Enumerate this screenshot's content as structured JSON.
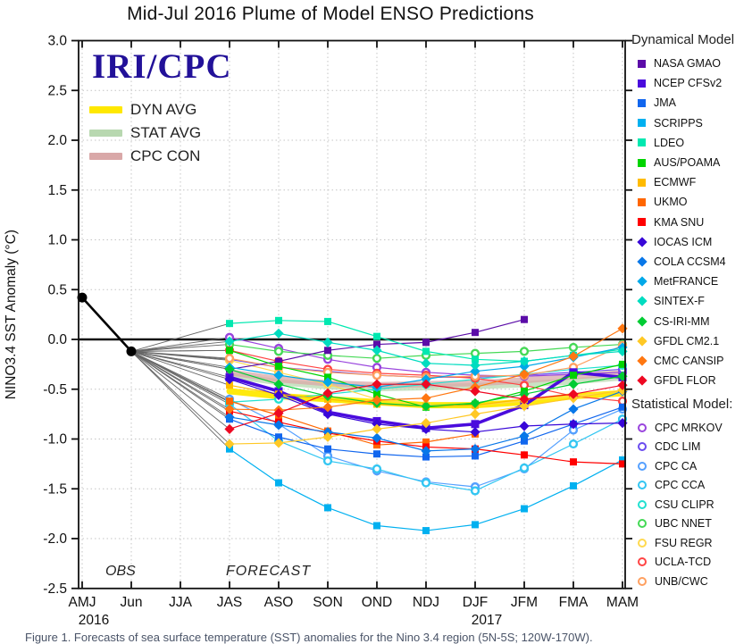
{
  "title": "Mid-Jul 2016 Plume of Model ENSO Predictions",
  "logo": "IRI/CPC",
  "caption": "Figure 1. Forecasts of sea surface temperature (SST) anomalies for the Nino 3.4 region (5N-5S; 120W-170W).",
  "mini_legend": [
    {
      "label": "DYN AVG",
      "color": "#ffe800",
      "opacity": 1
    },
    {
      "label": "STAT AVG",
      "color": "#b8d8b0",
      "opacity": 1
    },
    {
      "label": "CPC CON",
      "color": "#d9a8a8",
      "opacity": 1
    }
  ],
  "legend": {
    "dynamical_header": "Dynamical Model",
    "statistical_header": "Statistical Model:"
  },
  "chart_data": {
    "type": "line",
    "title": "Mid-Jul 2016 Plume of Model ENSO Predictions",
    "xlabel": "",
    "ylabel": "NINO3.4 SST Anomaly (°C)",
    "ylim": [
      -2.5,
      3.0
    ],
    "ytick_step": 0.5,
    "grid": "dotted",
    "legend_position": "right",
    "x_categories": [
      "AMJ",
      "Jun",
      "JJA",
      "JAS",
      "ASO",
      "SON",
      "OND",
      "NDJ",
      "DJF",
      "JFM",
      "FMA",
      "MAM"
    ],
    "year_labels": [
      {
        "text": "2016",
        "cat_index": 0
      },
      {
        "text": "2017",
        "cat_index": 8
      }
    ],
    "annotations": {
      "obs_label": "OBS",
      "forecast_label": "FORECAST"
    },
    "observed": {
      "name": "OBS",
      "color": "#000000",
      "x": [
        "AMJ",
        "Jun"
      ],
      "values": [
        0.42,
        -0.12
      ]
    },
    "forecast_start_category": "JAS",
    "fan_color": "#666666",
    "average_series": [
      {
        "name": "DYN AVG",
        "color": "#ffe800",
        "opacity": 0.95,
        "width": 7,
        "values": [
          -0.52,
          -0.57,
          -0.6,
          -0.63,
          -0.66,
          -0.66,
          -0.63,
          -0.57,
          -0.54
        ]
      },
      {
        "name": "STAT AVG",
        "color": "#b8d8b0",
        "opacity": 0.75,
        "width": 7,
        "values": [
          -0.36,
          -0.43,
          -0.47,
          -0.49,
          -0.48,
          -0.47,
          -0.45,
          -0.42,
          -0.38
        ]
      },
      {
        "name": "CPC CON",
        "color": "#d9a8a8",
        "opacity": 0.75,
        "width": 7,
        "values": [
          -0.33,
          -0.4,
          -0.44,
          -0.46,
          -0.45,
          -0.44,
          -0.41,
          -0.37,
          -0.34
        ]
      }
    ],
    "dynamical_series": [
      {
        "name": "NASA GMAO",
        "color": "#5b0ca8",
        "marker": "square",
        "values": [
          -0.3,
          -0.22,
          -0.11,
          -0.05,
          -0.03,
          0.07,
          0.2,
          null,
          null
        ]
      },
      {
        "name": "NCEP CFSv2",
        "color": "#4a0bdd",
        "marker": "square",
        "bold": true,
        "values": [
          -0.38,
          -0.52,
          -0.73,
          -0.82,
          -0.89,
          -0.85,
          -0.66,
          -0.33,
          -0.38
        ]
      },
      {
        "name": "JMA",
        "color": "#1166ee",
        "marker": "square",
        "values": [
          -0.8,
          -0.98,
          -1.1,
          -1.15,
          -1.18,
          -1.17,
          -1.02,
          -0.85,
          -0.68
        ]
      },
      {
        "name": "SCRIPPS",
        "color": "#00b0f0",
        "marker": "square",
        "values": [
          -1.1,
          -1.44,
          -1.69,
          -1.87,
          -1.92,
          -1.86,
          -1.7,
          -1.47,
          -1.21
        ]
      },
      {
        "name": "LDEO",
        "color": "#00e8b0",
        "marker": "square",
        "values": [
          0.16,
          0.19,
          0.18,
          0.03,
          -0.12,
          -0.2,
          -0.22,
          -0.16,
          -0.1
        ]
      },
      {
        "name": "AUS/POAMA",
        "color": "#00d400",
        "marker": "square",
        "values": [
          -0.11,
          -0.27,
          -0.38,
          -0.55,
          -0.68,
          -0.65,
          -0.52,
          -0.36,
          -0.25
        ]
      },
      {
        "name": "ECMWF",
        "color": "#ffbb00",
        "marker": "square",
        "values": [
          -0.46,
          -0.55,
          -0.6,
          -0.65,
          -0.67,
          -0.66,
          -0.6,
          null,
          null
        ]
      },
      {
        "name": "UKMO",
        "color": "#ff6600",
        "marker": "square",
        "values": [
          -0.62,
          -0.76,
          -0.92,
          -1.06,
          -1.03,
          -0.95,
          null,
          null,
          null
        ]
      },
      {
        "name": "KMA SNU",
        "color": "#ff0000",
        "marker": "square",
        "values": [
          -0.72,
          -0.83,
          -0.94,
          -1.02,
          -1.08,
          -1.1,
          -1.16,
          -1.23,
          -1.25
        ]
      },
      {
        "name": "IOCAS ICM",
        "color": "#3807d8",
        "marker": "diamond",
        "values": [
          -0.4,
          -0.56,
          -0.75,
          -0.85,
          -0.9,
          -0.93,
          -0.87,
          -0.85,
          -0.84
        ]
      },
      {
        "name": "COLA CCSM4",
        "color": "#0877e8",
        "marker": "diamond",
        "values": [
          -0.78,
          -0.86,
          -0.93,
          -0.99,
          -1.12,
          -1.1,
          -0.97,
          -0.7,
          -0.52
        ]
      },
      {
        "name": "MetFRANCE",
        "color": "#00a8e8",
        "marker": "diamond",
        "values": [
          -0.28,
          -0.36,
          -0.43,
          -0.48,
          -0.4,
          -0.32,
          -0.27,
          -0.18,
          -0.08
        ]
      },
      {
        "name": "SINTEX-F",
        "color": "#00dcc0",
        "marker": "diamond",
        "values": [
          -0.02,
          0.06,
          -0.03,
          -0.11,
          -0.24,
          -0.26,
          -0.22,
          -0.16,
          -0.12
        ]
      },
      {
        "name": "CS-IRI-MM",
        "color": "#00cc33",
        "marker": "diamond",
        "values": [
          -0.3,
          -0.45,
          -0.57,
          -0.64,
          -0.67,
          -0.64,
          -0.55,
          -0.45,
          -0.37
        ]
      },
      {
        "name": "GFDL CM2.1",
        "color": "#ffc825",
        "marker": "diamond",
        "values": [
          -1.05,
          -1.04,
          -0.98,
          -0.9,
          -0.84,
          -0.75,
          -0.67,
          -0.59,
          -0.51
        ]
      },
      {
        "name": "CMC CANSIP",
        "color": "#ff7711",
        "marker": "diamond",
        "values": [
          -0.7,
          -0.71,
          -0.68,
          -0.61,
          -0.59,
          -0.48,
          -0.35,
          -0.17,
          0.11
        ]
      },
      {
        "name": "GFDL FLOR",
        "color": "#ee0822",
        "marker": "diamond",
        "values": [
          -0.9,
          -0.74,
          -0.54,
          -0.45,
          -0.45,
          -0.52,
          -0.6,
          -0.55,
          -0.46
        ]
      }
    ],
    "statistical_series": [
      {
        "name": "CPC MRKOV",
        "color": "#9944dd",
        "marker": "ring",
        "values": [
          0.02,
          -0.09,
          -0.2,
          -0.28,
          -0.33,
          -0.36,
          -0.37,
          -0.35,
          -0.33
        ]
      },
      {
        "name": "CDC LIM",
        "color": "#6a4bef",
        "marker": "ring",
        "values": [
          -0.2,
          -0.28,
          -0.32,
          -0.36,
          -0.38,
          -0.38,
          -0.36,
          -0.33,
          -0.3
        ]
      },
      {
        "name": "CPC CA",
        "color": "#55a0ff",
        "marker": "ring",
        "values": [
          -0.6,
          -0.85,
          -1.17,
          -1.32,
          -1.43,
          -1.48,
          -1.3,
          -0.91,
          -0.7
        ]
      },
      {
        "name": "CPC CCA",
        "color": "#33c6f2",
        "marker": "ring",
        "values": [
          -0.65,
          -1.02,
          -1.22,
          -1.3,
          -1.44,
          -1.52,
          -1.29,
          -1.05,
          -0.8
        ]
      },
      {
        "name": "CSU CLIPR",
        "color": "#22e0d0",
        "marker": "ring",
        "values": [
          -0.63,
          -0.6,
          -0.55,
          -0.5,
          -0.45,
          -0.4,
          -0.35,
          -0.3,
          -0.26
        ]
      },
      {
        "name": "UBC NNET",
        "color": "#44d955",
        "marker": "ring",
        "values": [
          -0.05,
          -0.12,
          -0.16,
          -0.19,
          -0.16,
          -0.14,
          -0.12,
          -0.08,
          -0.05
        ]
      },
      {
        "name": "FSU REGR",
        "color": "#ffd94f",
        "marker": "ring",
        "values": [
          -0.21,
          -0.33,
          -0.45,
          -0.6,
          -0.66,
          -0.66,
          -0.62,
          -0.57,
          -0.52
        ]
      },
      {
        "name": "UCLA-TCD",
        "color": "#ff4444",
        "marker": "ring",
        "values": [
          -0.11,
          -0.22,
          -0.3,
          -0.34,
          -0.36,
          -0.39,
          -0.46,
          -0.57,
          -0.62
        ]
      },
      {
        "name": "UNB/CWC",
        "color": "#ffa060",
        "marker": "ring",
        "values": [
          -0.19,
          -0.28,
          -0.33,
          -0.36,
          -0.38,
          -0.37,
          -0.36,
          -0.28,
          -0.06
        ]
      }
    ]
  }
}
